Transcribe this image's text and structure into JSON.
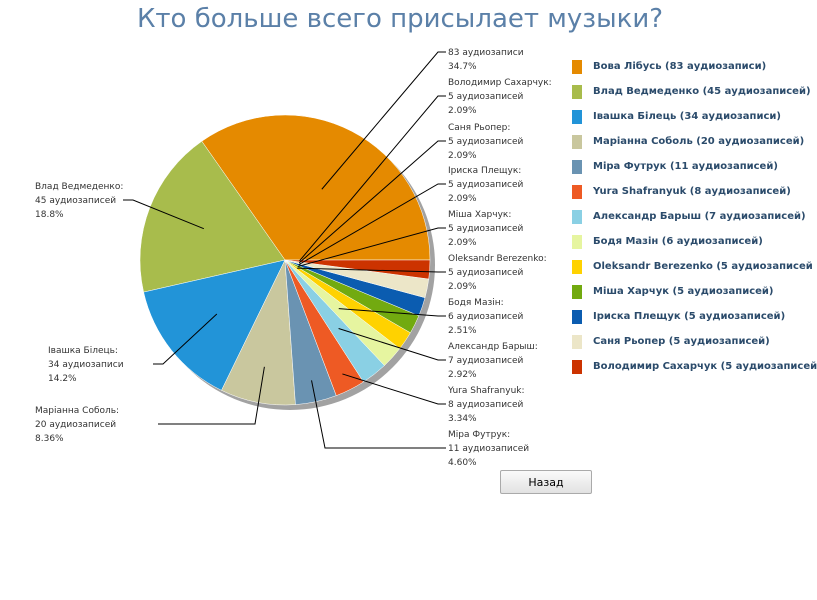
{
  "title": "Кто больше всего присылает музыки?",
  "back_button": "Назад",
  "chart_data": {
    "type": "pie",
    "title": "Кто больше всего присылает музыки?",
    "unit": "аудиозаписей",
    "slices": [
      {
        "name": "Вова Лібусь",
        "value": 83,
        "percent": "34.7%",
        "count_label": "83 аудиозаписи",
        "legend": "Вова Лібусь (83 аудиозаписи)",
        "color": "#e58a00"
      },
      {
        "name": "Влад Ведмеденко",
        "value": 45,
        "percent": "18.8%",
        "count_label": "45 аудиозаписей",
        "legend": "Влад Ведмеденко (45 аудиозаписей)",
        "color": "#a8bc4c"
      },
      {
        "name": "Івашка Білець",
        "value": 34,
        "percent": "14.2%",
        "count_label": "34 аудиозаписи",
        "legend": "Івашка Білець (34 аудиозаписи)",
        "color": "#2294d8"
      },
      {
        "name": "Маріанна Соболь",
        "value": 20,
        "percent": "8.36%",
        "count_label": "20 аудиозаписей",
        "legend": "Маріанна Соболь (20 аудиозаписей)",
        "color": "#c9c79e"
      },
      {
        "name": "Міра Футрук",
        "value": 11,
        "percent": "4.60%",
        "count_label": "11 аудиозаписей",
        "legend": "Міра Футрук (11 аудиозаписей)",
        "color": "#6a93b2"
      },
      {
        "name": "Yura Shafranyuk",
        "value": 8,
        "percent": "3.34%",
        "count_label": "8 аудиозаписей",
        "legend": "Yura Shafranyuk (8 аудиозаписей)",
        "color": "#ee5a24"
      },
      {
        "name": "Александр Барыш",
        "value": 7,
        "percent": "2.92%",
        "count_label": "7 аудиозаписей",
        "legend": "Александр Барыш (7 аудиозаписей)",
        "color": "#8ad0e4"
      },
      {
        "name": "Бодя Мазін",
        "value": 6,
        "percent": "2.51%",
        "count_label": "6 аудиозаписей",
        "legend": "Бодя Мазін (6 аудиозаписей)",
        "color": "#e6f5a0"
      },
      {
        "name": "Oleksandr Berezenko",
        "value": 5,
        "percent": "2.09%",
        "count_label": "5 аудиозаписей",
        "legend": "Oleksandr Berezenko (5 аудиозаписей",
        "color": "#ffd200"
      },
      {
        "name": "Міша Харчук",
        "value": 5,
        "percent": "2.09%",
        "count_label": "5 аудиозаписей",
        "legend": "Міша Харчук (5 аудиозаписей)",
        "color": "#72aa10"
      },
      {
        "name": "Іриска Плещук",
        "value": 5,
        "percent": "2.09%",
        "count_label": "5 аудиозаписей",
        "legend": "Іриска Плещук (5 аудиозаписей)",
        "color": "#0b5cb0"
      },
      {
        "name": "Саня Рьопер",
        "value": 5,
        "percent": "2.09%",
        "count_label": "5 аудиозаписей",
        "legend": "Саня Рьопер (5 аудиозаписей)",
        "color": "#ece6c8"
      },
      {
        "name": "Володимир Сахарчук",
        "value": 5,
        "percent": "2.09%",
        "count_label": "5 аудиозаписей",
        "legend": "Володимир Сахарчук (5 аудиозаписей",
        "color": "#cc3300"
      }
    ],
    "legend_position": "right"
  }
}
